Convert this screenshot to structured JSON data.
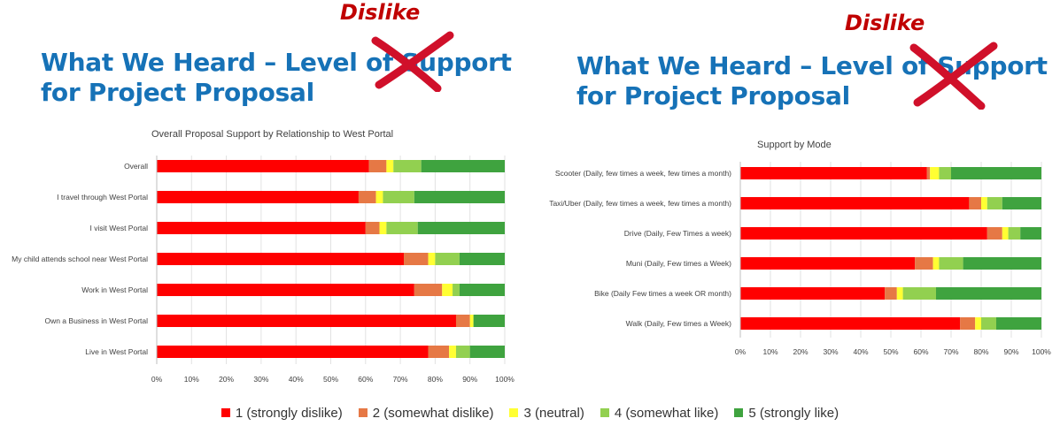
{
  "colors": {
    "title": "#1672b7",
    "dislike": "#c00000",
    "s1": "#ff0000",
    "s2": "#e67845",
    "s3": "#ffff33",
    "s4": "#92d050",
    "s5": "#3fa33f"
  },
  "left": {
    "title_line1": "What We Heard – Level of Support",
    "title_line2": "for Project Proposal",
    "dislike_text": "Dislike"
  },
  "right": {
    "title_line1": "What We Heard – Level of Support",
    "title_line2": "for Project Proposal",
    "dislike_text": "Dislike"
  },
  "legend": [
    {
      "label": "1 (strongly dislike)",
      "color": "#ff0000"
    },
    {
      "label": "2 (somewhat dislike)",
      "color": "#e67845"
    },
    {
      "label": "3 (neutral)",
      "color": "#ffff33"
    },
    {
      "label": "4 (somewhat like)",
      "color": "#92d050"
    },
    {
      "label": "5 (strongly like)",
      "color": "#3fa33f"
    }
  ],
  "chart_data": [
    {
      "type": "bar",
      "orientation": "horizontal-stacked-100",
      "title": "Overall Proposal Support by Relationship to West Portal",
      "xlim": [
        0,
        100
      ],
      "x_ticks": [
        "0%",
        "10%",
        "20%",
        "30%",
        "40%",
        "50%",
        "60%",
        "70%",
        "80%",
        "90%",
        "100%"
      ],
      "categories": [
        "Overall",
        "I travel through West Portal",
        "I visit West Portal",
        "My child attends school near West Portal",
        "Work in West Portal",
        "Own a Business in West Portal",
        "Live in West Portal"
      ],
      "series": [
        {
          "name": "1 (strongly dislike)",
          "values": [
            61,
            58,
            60,
            71,
            74,
            86,
            78
          ]
        },
        {
          "name": "2 (somewhat dislike)",
          "values": [
            5,
            5,
            4,
            7,
            8,
            4,
            6
          ]
        },
        {
          "name": "3 (neutral)",
          "values": [
            2,
            2,
            2,
            2,
            3,
            1,
            2
          ]
        },
        {
          "name": "4 (somewhat like)",
          "values": [
            8,
            9,
            9,
            7,
            2,
            0,
            4
          ]
        },
        {
          "name": "5 (strongly like)",
          "values": [
            24,
            26,
            25,
            13,
            13,
            9,
            10
          ]
        }
      ]
    },
    {
      "type": "bar",
      "orientation": "horizontal-stacked-100",
      "title": "Support by Mode",
      "xlim": [
        0,
        100
      ],
      "x_ticks": [
        "0%",
        "10%",
        "20%",
        "30%",
        "40%",
        "50%",
        "60%",
        "70%",
        "80%",
        "90%",
        "100%"
      ],
      "categories": [
        "Scooter (Daily, few times a week, few times a month)",
        "Taxi/Uber (Daily, few times a week, few times a month)",
        "Drive (Daily, Few Times a week)",
        "Muni (Daily, Few times a Week)",
        "Bike (Daily Few times a week OR month)",
        "Walk (Daily, Few times a Week)"
      ],
      "series": [
        {
          "name": "1 (strongly dislike)",
          "values": [
            62,
            76,
            82,
            58,
            48,
            73
          ]
        },
        {
          "name": "2 (somewhat dislike)",
          "values": [
            1,
            4,
            5,
            6,
            4,
            5
          ]
        },
        {
          "name": "3 (neutral)",
          "values": [
            3,
            2,
            2,
            2,
            2,
            2
          ]
        },
        {
          "name": "4 (somewhat like)",
          "values": [
            4,
            5,
            4,
            8,
            11,
            5
          ]
        },
        {
          "name": "5 (strongly like)",
          "values": [
            30,
            13,
            7,
            26,
            35,
            15
          ]
        }
      ]
    }
  ]
}
